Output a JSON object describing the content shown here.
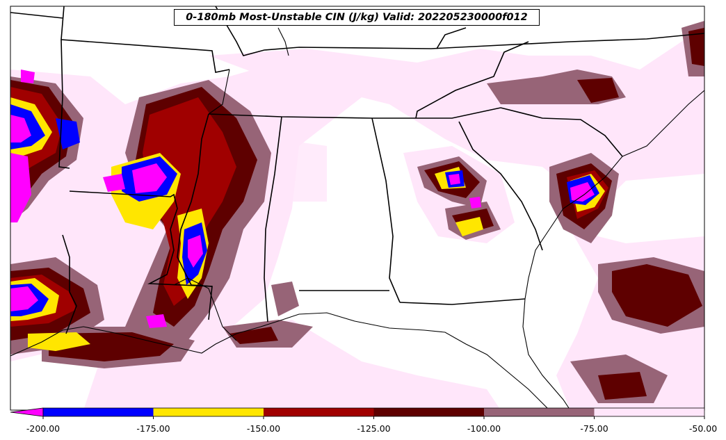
{
  "title": "0-180mb Most-Unstable CIN (J/kg) Valid: 202205230000f012",
  "colorbar": {
    "ticks": [
      "-200.00",
      "-175.00",
      "-150.00",
      "-125.00",
      "-100.00",
      "-75.00",
      "-50.00"
    ],
    "bins": [
      {
        "from": -200,
        "to": -175,
        "color": "#0000ff"
      },
      {
        "from": -175,
        "to": -150,
        "color": "#ffe600"
      },
      {
        "from": -150,
        "to": -125,
        "color": "#a00000"
      },
      {
        "from": -125,
        "to": -100,
        "color": "#5e0000"
      },
      {
        "from": -100,
        "to": -75,
        "color": "#976477"
      },
      {
        "from": -75,
        "to": -50,
        "color": "#ffe6fa"
      }
    ],
    "under_color": "#ff00ff",
    "range": [
      -200,
      -50
    ]
  },
  "colors": {
    "border": "#000000",
    "background": "#ffffff"
  }
}
